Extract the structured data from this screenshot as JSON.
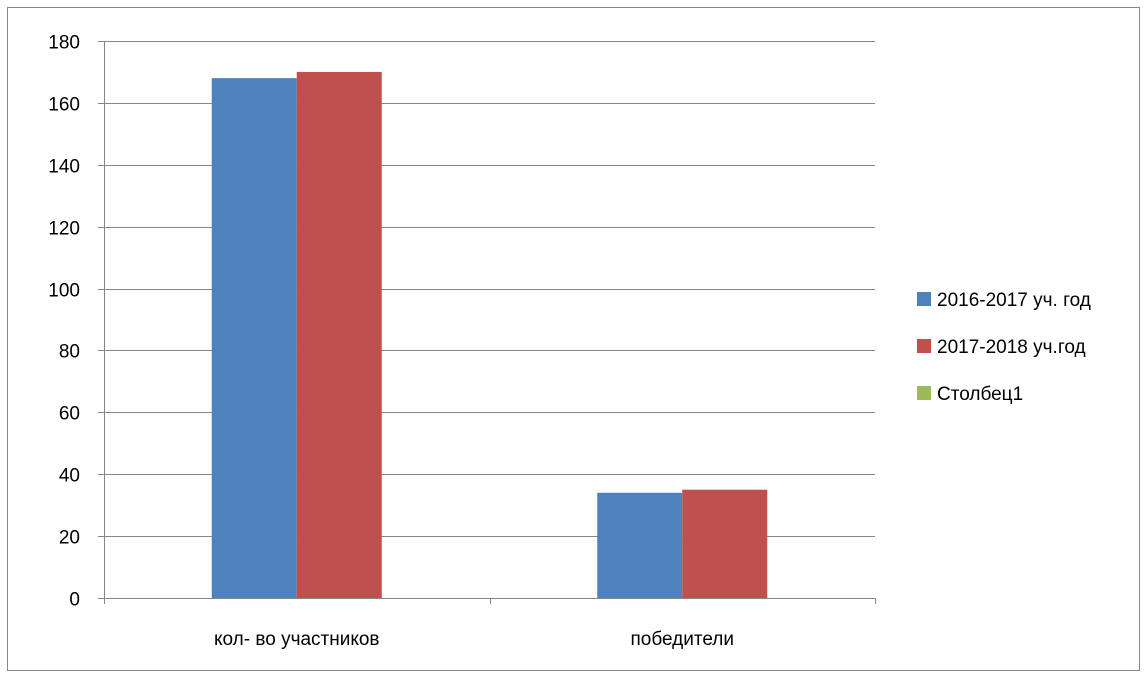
{
  "chart_data": {
    "type": "bar",
    "title": "",
    "xlabel": "",
    "ylabel": "",
    "categories": [
      "кол- во участников",
      "победители"
    ],
    "series": [
      {
        "name": "2016-2017 уч. год",
        "color": "#4F81BD",
        "values": [
          168,
          34
        ]
      },
      {
        "name": "2017-2018 уч.год",
        "color": "#C0504D",
        "values": [
          170,
          35
        ]
      },
      {
        "name": "Столбец1",
        "color": "#9BBB59",
        "values": [
          0,
          0
        ]
      }
    ],
    "ylim": [
      0,
      180
    ],
    "yticks": [
      0,
      20,
      40,
      60,
      80,
      100,
      120,
      140,
      160,
      180
    ],
    "grid": true,
    "legend_position": "right"
  }
}
